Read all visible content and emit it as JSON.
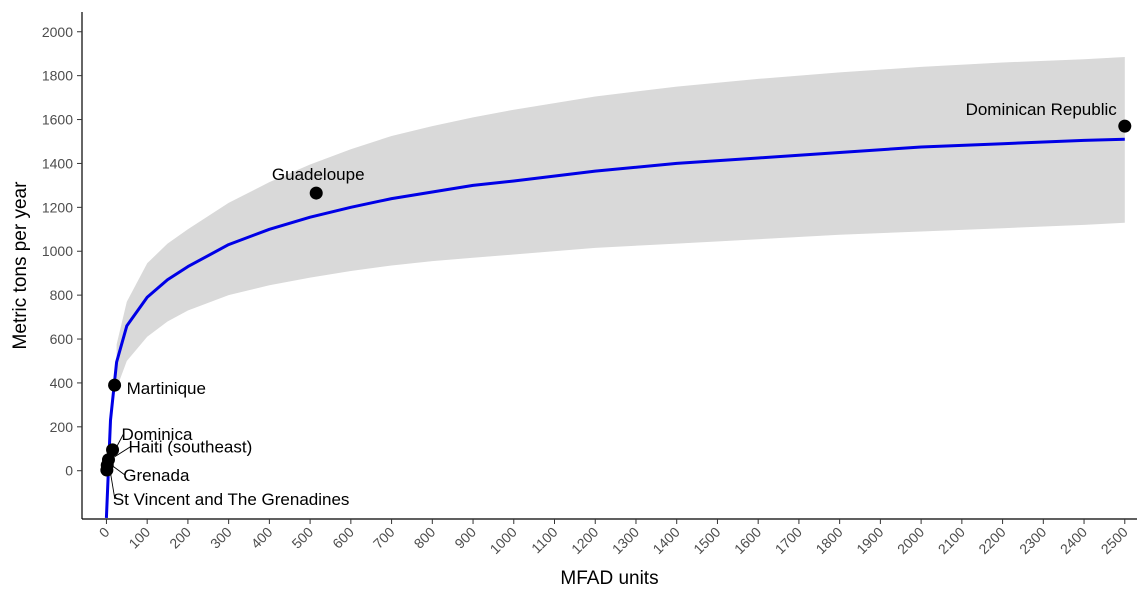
{
  "chart_data": {
    "type": "scatter",
    "title": "",
    "xlabel": "MFAD units",
    "ylabel": "Metric tons per year",
    "xlim": [
      -60,
      2530
    ],
    "ylim": [
      -220,
      2090
    ],
    "x_ticks": [
      "0",
      "100",
      "200",
      "300",
      "400",
      "500",
      "600",
      "700",
      "800",
      "900",
      "1000",
      "1100",
      "1200",
      "1300",
      "1400",
      "1500",
      "1600",
      "1700",
      "1800",
      "1900",
      "2000",
      "2100",
      "2200",
      "2300",
      "2400",
      "2500"
    ],
    "y_ticks": [
      "0",
      "200",
      "400",
      "600",
      "800",
      "1000",
      "1200",
      "1400",
      "1600",
      "1800",
      "2000"
    ],
    "grid": false,
    "legend": "none",
    "points": [
      {
        "label": "Dominican Republic",
        "x": 2500,
        "y": 1570
      },
      {
        "label": "Guadeloupe",
        "x": 515,
        "y": 1265
      },
      {
        "label": "Martinique",
        "x": 20,
        "y": 390
      },
      {
        "label": "Dominica",
        "x": 15,
        "y": 95
      },
      {
        "label": "Haiti (southeast)",
        "x": 5,
        "y": 50
      },
      {
        "label": "Grenada",
        "x": 2,
        "y": 25
      },
      {
        "label": "St Vincent and The Grenadines",
        "x": 1,
        "y": 3
      }
    ],
    "fit": {
      "model": "logarithmic",
      "x": [
        0,
        10,
        25,
        50,
        100,
        150,
        200,
        300,
        400,
        500,
        600,
        700,
        800,
        900,
        1000,
        1200,
        1400,
        1600,
        1800,
        2000,
        2200,
        2400,
        2500
      ],
      "y": [
        -215,
        230,
        495,
        660,
        790,
        870,
        930,
        1030,
        1100,
        1155,
        1200,
        1240,
        1270,
        1300,
        1320,
        1365,
        1400,
        1425,
        1450,
        1475,
        1490,
        1505,
        1510
      ],
      "lower": [
        null,
        null,
        375,
        500,
        610,
        680,
        730,
        800,
        845,
        880,
        910,
        935,
        955,
        970,
        985,
        1015,
        1035,
        1055,
        1075,
        1090,
        1105,
        1120,
        1130
      ],
      "upper": [
        null,
        null,
        575,
        770,
        945,
        1035,
        1100,
        1220,
        1315,
        1395,
        1465,
        1525,
        1570,
        1610,
        1645,
        1705,
        1750,
        1785,
        1815,
        1840,
        1860,
        1875,
        1885
      ]
    },
    "colors": {
      "fit_line": "#0000e6",
      "band": "#d9d9d9",
      "points": "#000000"
    }
  }
}
